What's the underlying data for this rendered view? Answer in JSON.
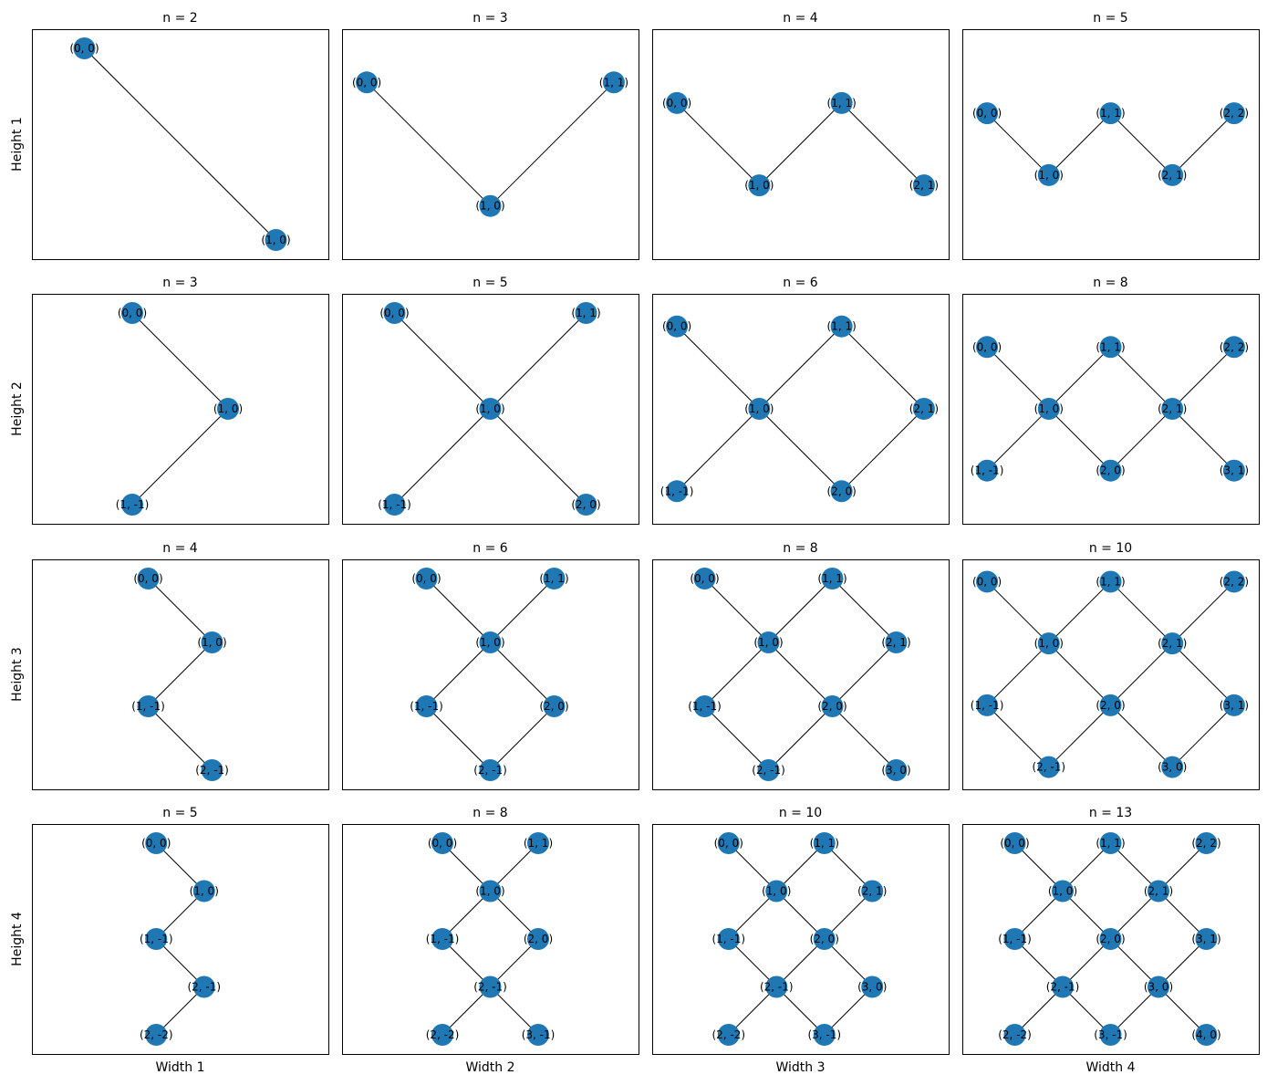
{
  "node_color": "#1f77b4",
  "edge_color": "#000000",
  "row_labels": [
    "Height 1",
    "Height 2",
    "Height 3",
    "Height 4"
  ],
  "col_labels": [
    "Width 1",
    "Width 2",
    "Width 3",
    "Width 4"
  ],
  "panels": [
    [
      {
        "title": "n = 2",
        "nodes": [
          "(0, 0)",
          "(1, 0)"
        ]
      },
      {
        "title": "n = 3",
        "nodes": [
          "(0, 0)",
          "(1, 0)",
          "(1, 1)"
        ]
      },
      {
        "title": "n = 4",
        "nodes": [
          "(0, 0)",
          "(1, 0)",
          "(1, 1)",
          "(2, 1)"
        ]
      },
      {
        "title": "n = 5",
        "nodes": [
          "(0, 0)",
          "(1, 0)",
          "(1, 1)",
          "(2, 1)",
          "(2, 2)"
        ]
      }
    ],
    [
      {
        "title": "n = 3",
        "nodes": [
          "(0, 0)",
          "(1, 0)",
          "(1, -1)"
        ]
      },
      {
        "title": "n = 5",
        "nodes": [
          "(0, 0)",
          "(1, 1)",
          "(1, 0)",
          "(1, -1)",
          "(2, 0)"
        ]
      },
      {
        "title": "n = 6",
        "nodes": [
          "(0, 0)",
          "(1, 1)",
          "(1, 0)",
          "(2, 1)",
          "(1, -1)",
          "(2, 0)"
        ]
      },
      {
        "title": "n = 8",
        "nodes": [
          "(0, 0)",
          "(1, 1)",
          "(2, 2)",
          "(1, 0)",
          "(2, 1)",
          "(1, -1)",
          "(2, 0)",
          "(3, 1)"
        ]
      }
    ],
    [
      {
        "title": "n = 4",
        "nodes": [
          "(0, 0)",
          "(1, 0)",
          "(1, -1)",
          "(2, -1)"
        ]
      },
      {
        "title": "n = 6",
        "nodes": [
          "(0, 0)",
          "(1, 1)",
          "(1, 0)",
          "(1, -1)",
          "(2, 0)",
          "(2, -1)"
        ]
      },
      {
        "title": "n = 8",
        "nodes": [
          "(0, 0)",
          "(1, 1)",
          "(1, 0)",
          "(2, 1)",
          "(1, -1)",
          "(2, 0)",
          "(2, -1)",
          "(3, 0)"
        ]
      },
      {
        "title": "n = 10",
        "nodes": [
          "(0, 0)",
          "(1, 1)",
          "(2, 2)",
          "(1, 0)",
          "(2, 1)",
          "(1, -1)",
          "(2, 0)",
          "(3, 1)",
          "(2, -1)",
          "(3, 0)"
        ]
      }
    ],
    [
      {
        "title": "n = 5",
        "nodes": [
          "(0, 0)",
          "(1, 0)",
          "(1, -1)",
          "(2, -1)",
          "(2, -2)"
        ]
      },
      {
        "title": "n = 8",
        "nodes": [
          "(0, 0)",
          "(1, 1)",
          "(1, 0)",
          "(1, -1)",
          "(2, 0)",
          "(2, -1)",
          "(2, -2)",
          "(3, -1)"
        ]
      },
      {
        "title": "n = 10",
        "nodes": [
          "(0, 0)",
          "(1, 1)",
          "(1, 0)",
          "(2, 1)",
          "(1, -1)",
          "(2, 0)",
          "(2, -1)",
          "(3, 0)",
          "(2, -2)",
          "(3, -1)"
        ]
      },
      {
        "title": "n = 13",
        "nodes": [
          "(0, 0)",
          "(1, 1)",
          "(2, 2)",
          "(1, 0)",
          "(2, 1)",
          "(1, -1)",
          "(2, 0)",
          "(3, 1)",
          "(2, -1)",
          "(3, 0)",
          "(2, -2)",
          "(3, -1)",
          "(4, 0)"
        ]
      }
    ]
  ]
}
